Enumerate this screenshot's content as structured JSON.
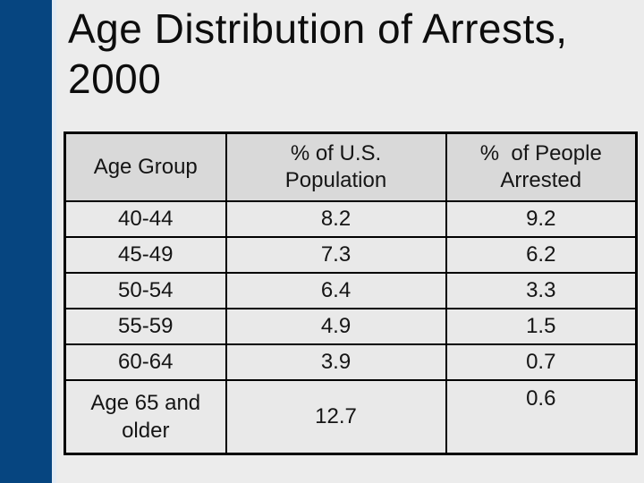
{
  "slide": {
    "title_line1": "Age Distribution of Arrests,",
    "title_line2": "2000"
  },
  "table": {
    "header": {
      "age_group": "Age Group",
      "population_line1": "% of U.S.",
      "population_line2": "Population",
      "arrested_line1": "%  of People",
      "arrested_line2": "Arrested"
    },
    "rows": [
      {
        "age_group": "40-44",
        "pct_us_population": "8.2",
        "pct_people_arrested": "9.2"
      },
      {
        "age_group": "45-49",
        "pct_us_population": "7.3",
        "pct_people_arrested": "6.2"
      },
      {
        "age_group": "50-54",
        "pct_us_population": "6.4",
        "pct_people_arrested": "3.3"
      },
      {
        "age_group": "55-59",
        "pct_us_population": "4.9",
        "pct_people_arrested": "1.5"
      },
      {
        "age_group": "60-64",
        "pct_us_population": "3.9",
        "pct_people_arrested": "0.7"
      },
      {
        "age_group": "Age 65 and older",
        "pct_us_population": "12.7",
        "pct_people_arrested": "0.6"
      }
    ]
  },
  "colors": {
    "sidebar_navy": "#064580",
    "sidebar_edge": "#e2eaf4",
    "slide_background": "#ececec",
    "table_header_bg": "#d9d9d9",
    "table_row_bg": "#e9e9e9",
    "table_border": "#000000",
    "text": "#111111"
  }
}
